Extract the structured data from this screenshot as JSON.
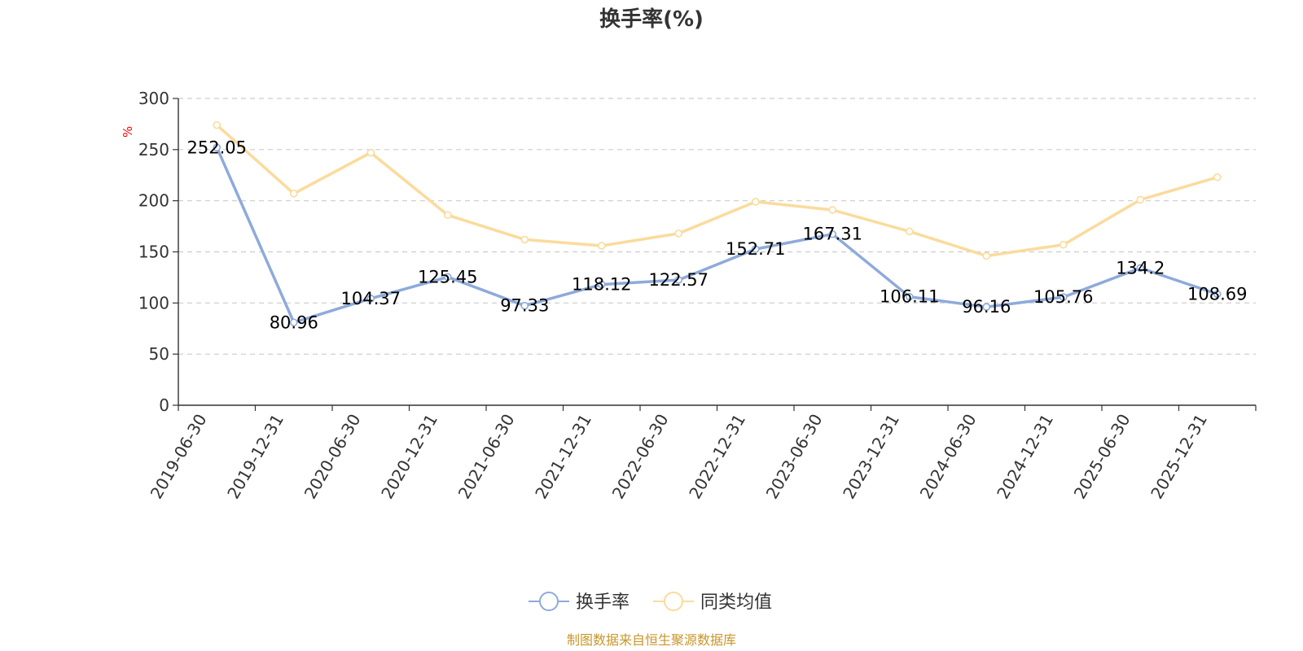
{
  "chart_data": {
    "type": "line",
    "title": "换手率(%)",
    "ylabel": "%",
    "xlabel": "",
    "ylim": [
      0,
      300
    ],
    "yticks": [
      0,
      50,
      100,
      150,
      200,
      250,
      300
    ],
    "grid": true,
    "legend_position": "bottom",
    "categories": [
      "2019-06-30",
      "2019-12-31",
      "2020-06-30",
      "2020-12-31",
      "2021-06-30",
      "2021-12-31",
      "2022-06-30",
      "2022-12-31",
      "2023-06-30",
      "2023-12-31",
      "2024-06-30",
      "2024-12-31",
      "2025-06-30",
      "2025-12-31"
    ],
    "series": [
      {
        "name": "换手率",
        "color": "#8eaadb",
        "show_labels": true,
        "values": [
          252.05,
          80.96,
          104.37,
          125.45,
          97.33,
          118.12,
          122.57,
          152.71,
          167.31,
          106.11,
          96.16,
          105.76,
          134.2,
          108.69
        ],
        "labels": [
          "252.05",
          "80.96",
          "104.37",
          "125.45",
          "97.33",
          "118.12",
          "122.57",
          "152.71",
          "167.31",
          "106.11",
          "96.16",
          "105.76",
          "134.2",
          "108.69"
        ]
      },
      {
        "name": "同类均值",
        "color": "#fbdb9c",
        "show_labels": false,
        "values": [
          274,
          207,
          247,
          186,
          162,
          156,
          168,
          199,
          191,
          170,
          146,
          157,
          201,
          223
        ]
      }
    ],
    "source": "制图数据来自恒生聚源数据库",
    "colors": {
      "title": "#333333",
      "unit": "#ff0000",
      "source": "#c8962a",
      "grid": "#cccccc",
      "axis": "#333333"
    }
  }
}
